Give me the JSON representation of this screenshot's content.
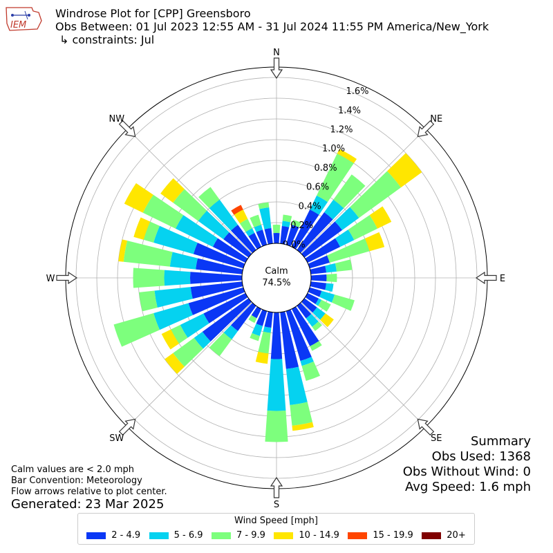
{
  "title": {
    "line1": "Windrose Plot for [CPP] Greensboro",
    "line2": "Obs Between: 01 Jul 2023 12:55 AM - 31 Jul 2024 11:55 PM America/New_York",
    "line3": "↳ constraints: Jul"
  },
  "logo": {
    "text": "IEM"
  },
  "summary": {
    "heading": "Summary",
    "obs_used": "Obs Used: 1368",
    "obs_without_wind": "Obs Without Wind: 0",
    "avg_speed": "Avg Speed: 1.6 mph"
  },
  "notes": {
    "calm": "Calm values are < 2.0 mph",
    "bar_convention": "Bar Convention: Meteorology",
    "flow_arrows": "Flow arrows relative to plot center."
  },
  "generated": "Generated: 23 Mar 2025",
  "legend": {
    "title": "Wind Speed [mph]",
    "items": [
      {
        "label": "2 - 4.9",
        "color": "#0a37f5"
      },
      {
        "label": "5 - 6.9",
        "color": "#05d2f0"
      },
      {
        "label": "7 - 9.9",
        "color": "#7dff7d"
      },
      {
        "label": "10 - 14.9",
        "color": "#ffe600"
      },
      {
        "label": "15 - 19.9",
        "color": "#ff4500"
      },
      {
        "label": "20+",
        "color": "#7f0000"
      }
    ]
  },
  "chart_data": {
    "type": "windrose",
    "calm_label": "Calm",
    "calm_percent": "74.5%",
    "compass_labels": [
      "N",
      "NE",
      "E",
      "SE",
      "S",
      "SW",
      "W",
      "NW"
    ],
    "radial_ticks": [
      "0.0%",
      "0.2%",
      "0.4%",
      "0.6%",
      "0.8%",
      "1.0%",
      "1.2%",
      "1.4%",
      "1.6%"
    ],
    "rmax": 1.7,
    "directions_deg": [
      0,
      10,
      20,
      30,
      40,
      50,
      60,
      70,
      80,
      90,
      100,
      110,
      120,
      130,
      140,
      150,
      160,
      170,
      180,
      190,
      200,
      210,
      220,
      230,
      240,
      250,
      260,
      270,
      280,
      290,
      300,
      310,
      320,
      330,
      340,
      350
    ],
    "speed_bins": [
      "2 - 4.9",
      "5 - 6.9",
      "7 - 9.9",
      "10 - 14.9",
      "15 - 19.9",
      "20+"
    ],
    "cumulative_percent": [
      [
        0.1,
        0.1,
        0.18,
        0.18,
        0.18,
        0.18
      ],
      [
        0.17,
        0.22,
        0.28,
        0.28,
        0.28,
        0.28
      ],
      [
        0.2,
        0.2,
        0.25,
        0.25,
        0.25,
        0.25
      ],
      [
        0.4,
        0.55,
        1.0,
        1.05,
        1.05,
        1.05
      ],
      [
        0.45,
        0.6,
        0.9,
        0.9,
        0.9,
        0.9
      ],
      [
        0.45,
        0.65,
        1.15,
        1.4,
        1.4,
        1.4
      ],
      [
        0.35,
        0.5,
        0.75,
        0.9,
        0.9,
        0.9
      ],
      [
        0.2,
        0.2,
        0.6,
        0.75,
        0.75,
        0.75
      ],
      [
        0.15,
        0.25,
        0.4,
        0.4,
        0.4,
        0.4
      ],
      [
        0.15,
        0.15,
        0.25,
        0.25,
        0.25,
        0.25
      ],
      [
        0.15,
        0.22,
        0.22,
        0.22,
        0.22,
        0.22
      ],
      [
        0.12,
        0.25,
        0.45,
        0.45,
        0.45,
        0.45
      ],
      [
        0.12,
        0.15,
        0.25,
        0.25,
        0.25,
        0.25
      ],
      [
        0.15,
        0.25,
        0.25,
        0.35,
        0.35,
        0.35
      ],
      [
        0.15,
        0.25,
        0.3,
        0.3,
        0.3,
        0.3
      ],
      [
        0.4,
        0.4,
        0.45,
        0.45,
        0.45,
        0.45
      ],
      [
        0.5,
        0.55,
        0.7,
        0.7,
        0.7,
        0.7
      ],
      [
        0.55,
        0.9,
        1.1,
        1.15,
        1.15,
        1.15
      ],
      [
        0.45,
        0.95,
        1.25,
        1.25,
        1.25,
        1.25
      ],
      [
        0.15,
        0.2,
        0.4,
        0.5,
        0.5,
        0.5
      ],
      [
        0.15,
        0.25,
        0.3,
        0.3,
        0.3,
        0.3
      ],
      [
        0.1,
        0.1,
        0.15,
        0.15,
        0.15,
        0.15
      ],
      [
        0.3,
        0.4,
        0.6,
        0.6,
        0.6,
        0.6
      ],
      [
        0.55,
        0.65,
        0.9,
        1.0,
        1.0,
        1.0
      ],
      [
        0.45,
        0.7,
        0.8,
        0.9,
        0.9,
        0.9
      ],
      [
        0.55,
        0.9,
        1.3,
        1.3,
        1.3,
        1.3
      ],
      [
        0.5,
        0.85,
        1.0,
        1.0,
        1.0,
        1.0
      ],
      [
        0.5,
        0.75,
        1.05,
        1.05,
        1.05,
        1.05
      ],
      [
        0.45,
        0.7,
        1.15,
        1.2,
        1.2,
        1.2
      ],
      [
        0.5,
        0.9,
        1.0,
        1.1,
        1.1,
        1.1
      ],
      [
        0.35,
        0.75,
        1.1,
        1.3,
        1.3,
        1.3
      ],
      [
        0.3,
        0.6,
        0.9,
        1.05,
        1.05,
        1.05
      ],
      [
        0.3,
        0.6,
        0.75,
        0.75,
        0.75,
        0.75
      ],
      [
        0.15,
        0.2,
        0.3,
        0.4,
        0.45,
        0.45
      ],
      [
        0.15,
        0.2,
        0.3,
        0.3,
        0.3,
        0.3
      ],
      [
        0.15,
        0.35,
        0.4,
        0.4,
        0.4,
        0.4
      ]
    ]
  }
}
